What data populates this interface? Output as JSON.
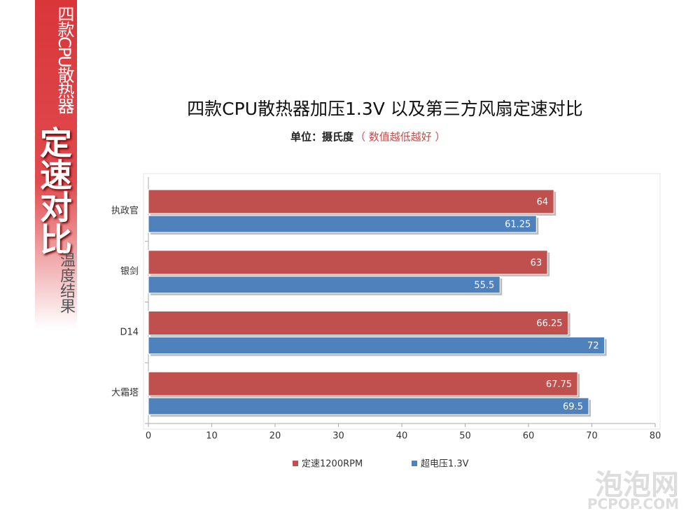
{
  "sidebar": {
    "line1": "四款CPU散热器",
    "line2": "定速对比",
    "line3": "温度结果"
  },
  "watermark": {
    "name": "泡泡网",
    "site": "PCPOP.COM"
  },
  "chart_data": {
    "type": "hbar",
    "title": "四款CPU散热器加压1.3V 以及第三方风扇定速对比",
    "subtitle": "单位：摄氏度",
    "subtitle_note": "（ 数值越低越好 ）",
    "categories": [
      "执政官",
      "银剑",
      "D14",
      "大霜塔"
    ],
    "series": [
      {
        "name": "定速1200RPM",
        "color": "#c0504d",
        "values": [
          64,
          63,
          66.25,
          67.75
        ]
      },
      {
        "name": "超电压1.3V",
        "color": "#4f81bd",
        "values": [
          61.25,
          55.5,
          72,
          69.5
        ]
      }
    ],
    "xlim": [
      0,
      80
    ],
    "xticks": [
      0,
      10,
      20,
      30,
      40,
      50,
      60,
      70,
      80
    ],
    "grid": false,
    "legend": "bottom"
  }
}
